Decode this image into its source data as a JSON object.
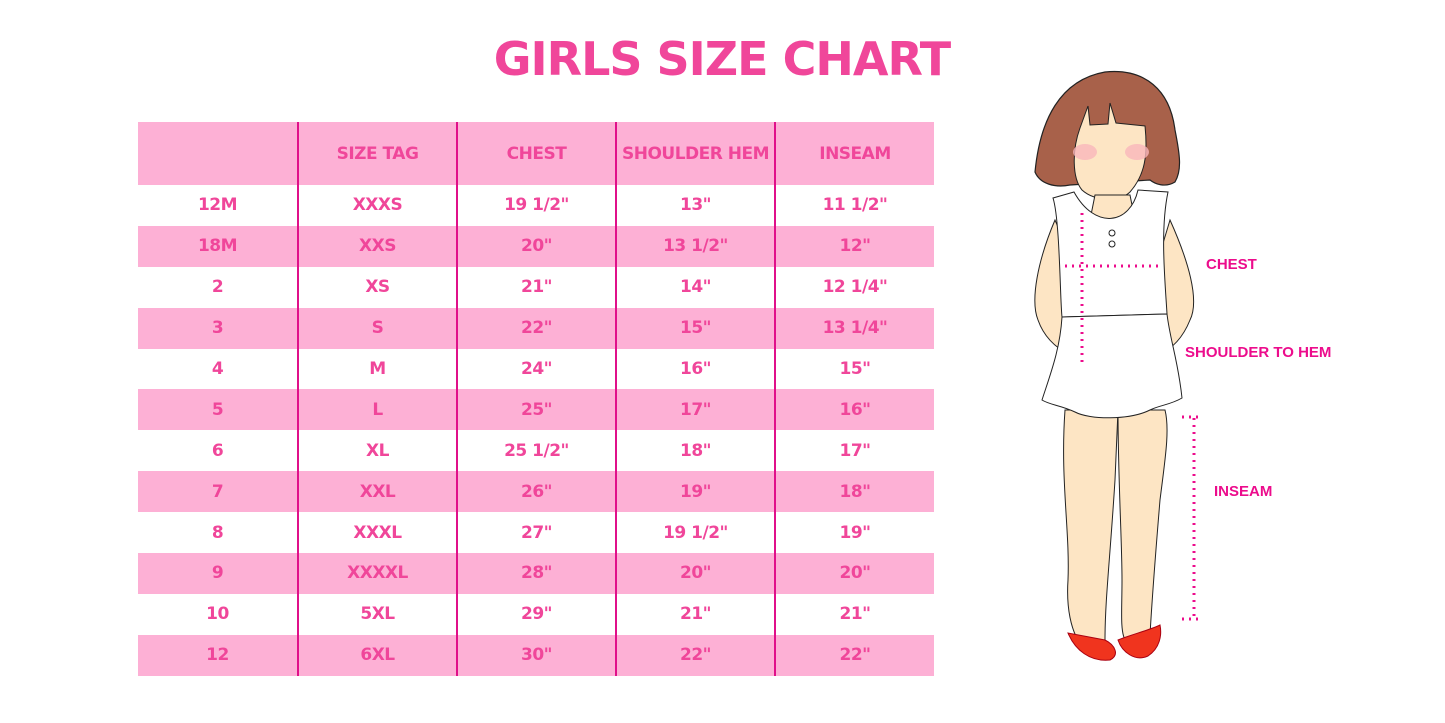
{
  "title": "GIRLS SIZE CHART",
  "table": {
    "headers": [
      "",
      "SIZE TAG",
      "CHEST",
      "SHOULDER HEM",
      "INSEAM"
    ],
    "rows": [
      [
        "12M",
        "XXXS",
        "19 1/2\"",
        "13\"",
        "11 1/2\""
      ],
      [
        "18M",
        "XXS",
        "20\"",
        "13 1/2\"",
        "12\""
      ],
      [
        "2",
        "XS",
        "21\"",
        "14\"",
        "12 1/4\""
      ],
      [
        "3",
        "S",
        "22\"",
        "15\"",
        "13 1/4\""
      ],
      [
        "4",
        "M",
        "24\"",
        "16\"",
        "15\""
      ],
      [
        "5",
        "L",
        "25\"",
        "17\"",
        "16\""
      ],
      [
        "6",
        "XL",
        "25 1/2\"",
        "18\"",
        "17\""
      ],
      [
        "7",
        "XXL",
        "26\"",
        "19\"",
        "18\""
      ],
      [
        "8",
        "XXXL",
        "27\"",
        "19 1/2\"",
        "19\""
      ],
      [
        "9",
        "XXXXL",
        "28\"",
        "20\"",
        "20\""
      ],
      [
        "10",
        "5XL",
        "29\"",
        "21\"",
        "21\""
      ],
      [
        "12",
        "6XL",
        "30\"",
        "22\"",
        "22\""
      ]
    ]
  },
  "figure": {
    "labels": {
      "chest": "CHEST",
      "shoulder": "SHOULDER TO HEM",
      "inseam": "INSEAM"
    }
  },
  "colors": {
    "accent": "#f0469a",
    "row_pink": "#fdb0d5",
    "divider": "#e0108a"
  }
}
